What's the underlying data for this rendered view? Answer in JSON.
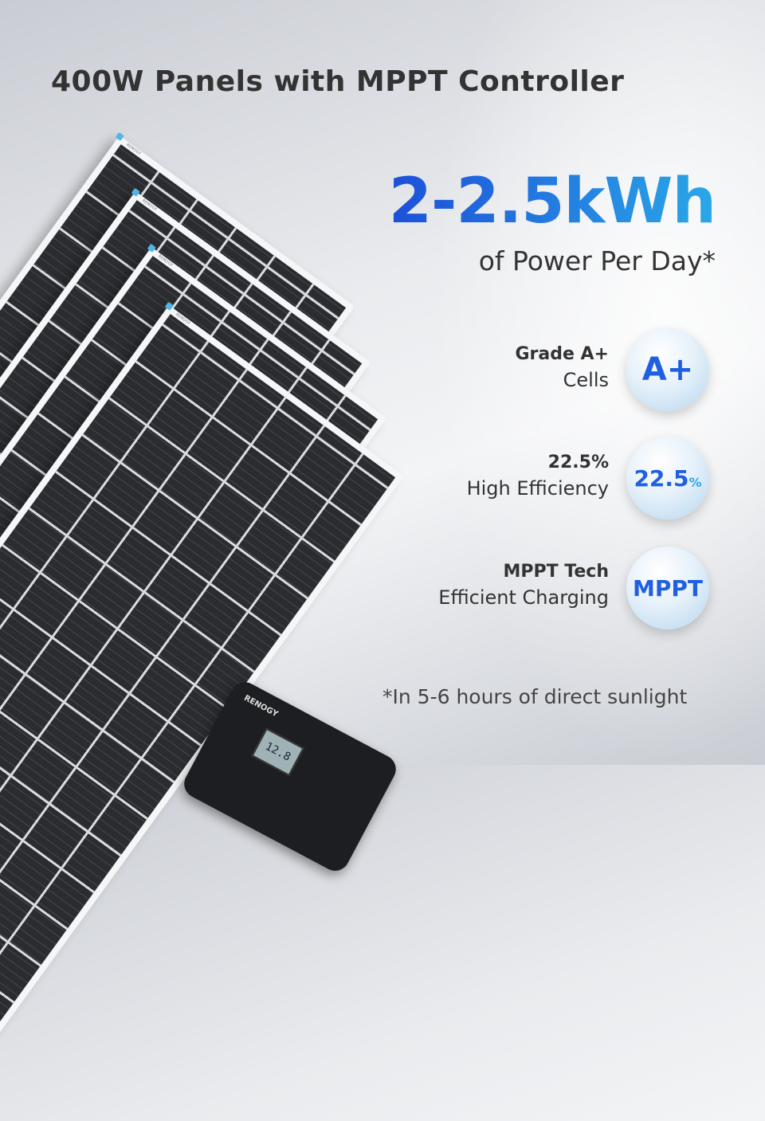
{
  "headline": "400W Panels with MPPT Controller",
  "energy": {
    "value": "2-2.5kWh",
    "caption": "of Power Per Day*"
  },
  "features": [
    {
      "title": "Grade A+",
      "subtitle": "Cells",
      "badge": "A+",
      "icon": "grade-a-plus-badge"
    },
    {
      "title": "22.5%",
      "subtitle": "High Efficiency",
      "badge": "22.5",
      "badge_suffix": "%",
      "icon": "efficiency-badge"
    },
    {
      "title": "MPPT Tech",
      "subtitle": "Efficient Charging",
      "badge": "MPPT",
      "icon": "mppt-badge"
    }
  ],
  "footnote": "*In 5-6 hours of direct sunlight",
  "product": {
    "brand_logo": "RENOGY",
    "display_reading": "12.8"
  },
  "colors": {
    "accent_blue": "#1f5fe0",
    "accent_cyan": "#2aa8e8",
    "text": "#333333"
  }
}
